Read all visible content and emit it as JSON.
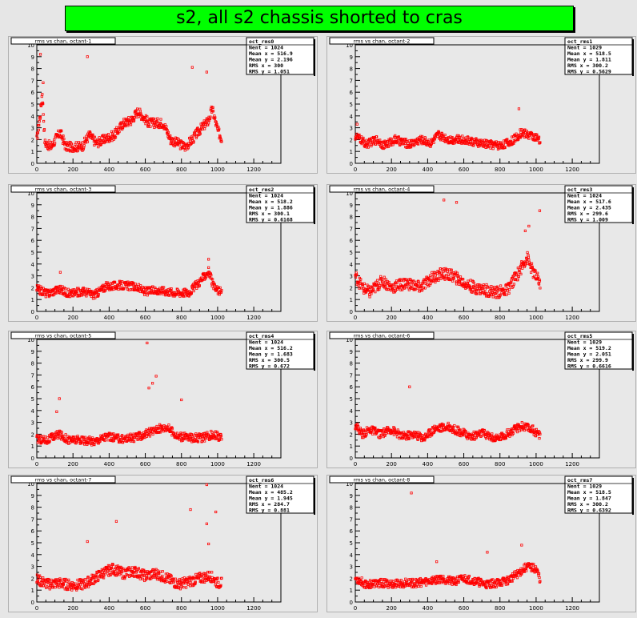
{
  "title": "s2, all s2 chassis shorted to cras",
  "colors": {
    "background": "#e6e6e6",
    "title_bg": "#00ff00",
    "marker": "#ff0000",
    "frame": "#000000"
  },
  "chart_data": [
    {
      "type": "scatter",
      "title": "rms vs chan, octant-1",
      "stats": {
        "name": "oct_rms0",
        "entries": "Nent = 1024",
        "mean_x": "Mean x =  516.9",
        "mean_y": "Mean y =  2.196",
        "rms_x": "RMS x =    300",
        "rms_y": "RMS y =  1.051"
      },
      "xlim": [
        0,
        1350
      ],
      "ylim": [
        0,
        10
      ],
      "xticks": [
        0,
        200,
        400,
        600,
        800,
        1000,
        1200
      ],
      "yticks": [
        0,
        1,
        2,
        3,
        4,
        5,
        6,
        7,
        8,
        9,
        10
      ],
      "profile": [
        [
          0,
          2.0
        ],
        [
          20,
          4.2
        ],
        [
          30,
          6.0
        ],
        [
          45,
          1.7
        ],
        [
          80,
          1.4
        ],
        [
          110,
          2.2
        ],
        [
          130,
          2.6
        ],
        [
          160,
          1.4
        ],
        [
          250,
          1.4
        ],
        [
          290,
          2.4
        ],
        [
          330,
          1.7
        ],
        [
          370,
          2.0
        ],
        [
          430,
          2.4
        ],
        [
          480,
          3.4
        ],
        [
          520,
          3.6
        ],
        [
          560,
          4.4
        ],
        [
          620,
          3.4
        ],
        [
          700,
          3.4
        ],
        [
          740,
          2.0
        ],
        [
          820,
          1.4
        ],
        [
          860,
          2.0
        ],
        [
          900,
          2.8
        ],
        [
          950,
          3.6
        ],
        [
          970,
          4.6
        ],
        [
          1000,
          2.8
        ],
        [
          1030,
          1.8
        ]
      ],
      "spread": 0.4,
      "outliers": [
        [
          20,
          9.2
        ],
        [
          280,
          9.0
        ],
        [
          860,
          8.1
        ],
        [
          940,
          7.7
        ],
        [
          35,
          6.8
        ],
        [
          30,
          5.0
        ]
      ]
    },
    {
      "type": "scatter",
      "title": "rms vs chan, octant-2",
      "stats": {
        "name": "oct_rms1",
        "entries": "Nent = 1029",
        "mean_x": "Mean x =  518.5",
        "mean_y": "Mean y =  1.811",
        "rms_x": "RMS x =  300.2",
        "rms_y": "RMS y = 0.5629"
      },
      "xlim": [
        0,
        1350
      ],
      "ylim": [
        0,
        10
      ],
      "xticks": [
        0,
        200,
        400,
        600,
        800,
        1000,
        1200
      ],
      "yticks": [
        0,
        1,
        2,
        3,
        4,
        5,
        6,
        7,
        8,
        9,
        10
      ],
      "profile": [
        [
          0,
          2.3
        ],
        [
          30,
          2.0
        ],
        [
          60,
          1.6
        ],
        [
          120,
          2.0
        ],
        [
          160,
          1.5
        ],
        [
          220,
          2.0
        ],
        [
          300,
          1.6
        ],
        [
          360,
          2.0
        ],
        [
          420,
          1.7
        ],
        [
          460,
          2.4
        ],
        [
          520,
          2.0
        ],
        [
          600,
          2.0
        ],
        [
          680,
          1.7
        ],
        [
          740,
          1.6
        ],
        [
          800,
          1.5
        ],
        [
          860,
          1.8
        ],
        [
          920,
          2.6
        ],
        [
          960,
          2.4
        ],
        [
          1000,
          2.2
        ],
        [
          1030,
          1.6
        ]
      ],
      "spread": 0.35,
      "outliers": [
        [
          905,
          4.6
        ],
        [
          10,
          3.3
        ]
      ]
    },
    {
      "type": "scatter",
      "title": "rms vs chan, octant-3",
      "stats": {
        "name": "oct_rms2",
        "entries": "Nent = 1024",
        "mean_x": "Mean x =  518.2",
        "mean_y": "Mean y =  1.886",
        "rms_x": "RMS x =  300.1",
        "rms_y": "RMS y = 0.6168"
      },
      "xlim": [
        0,
        1350
      ],
      "ylim": [
        0,
        10
      ],
      "xticks": [
        0,
        200,
        400,
        600,
        800,
        1000,
        1200
      ],
      "yticks": [
        0,
        1,
        2,
        3,
        4,
        5,
        6,
        7,
        8,
        9,
        10
      ],
      "profile": [
        [
          0,
          1.9
        ],
        [
          60,
          1.5
        ],
        [
          120,
          1.9
        ],
        [
          180,
          1.5
        ],
        [
          260,
          1.7
        ],
        [
          320,
          1.4
        ],
        [
          380,
          2.1
        ],
        [
          460,
          2.2
        ],
        [
          540,
          2.1
        ],
        [
          600,
          1.7
        ],
        [
          680,
          1.8
        ],
        [
          760,
          1.6
        ],
        [
          840,
          1.6
        ],
        [
          900,
          2.5
        ],
        [
          950,
          3.4
        ],
        [
          980,
          2.0
        ],
        [
          1030,
          1.5
        ]
      ],
      "spread": 0.35,
      "outliers": [
        [
          950,
          4.4
        ],
        [
          130,
          3.3
        ]
      ]
    },
    {
      "type": "scatter",
      "title": "rms vs chan, octant-4",
      "stats": {
        "name": "oct_rms3",
        "entries": "Nent = 1024",
        "mean_x": "Mean x =  517.6",
        "mean_y": "Mean y =  2.435",
        "rms_x": "RMS x =  299.6",
        "rms_y": "RMS y =  1.009"
      },
      "xlim": [
        0,
        1350
      ],
      "ylim": [
        0,
        10
      ],
      "xticks": [
        0,
        200,
        400,
        600,
        800,
        1000,
        1200
      ],
      "yticks": [
        0,
        1,
        2,
        3,
        4,
        5,
        6,
        7,
        8,
        9,
        10
      ],
      "profile": [
        [
          0,
          3.0
        ],
        [
          40,
          2.0
        ],
        [
          80,
          1.6
        ],
        [
          150,
          2.6
        ],
        [
          200,
          2.0
        ],
        [
          280,
          2.4
        ],
        [
          360,
          2.0
        ],
        [
          420,
          2.8
        ],
        [
          480,
          3.2
        ],
        [
          540,
          3.0
        ],
        [
          600,
          2.4
        ],
        [
          660,
          2.0
        ],
        [
          720,
          1.8
        ],
        [
          780,
          1.6
        ],
        [
          840,
          1.8
        ],
        [
          900,
          3.2
        ],
        [
          950,
          4.6
        ],
        [
          980,
          3.4
        ],
        [
          1030,
          2.2
        ]
      ],
      "spread": 0.5,
      "outliers": [
        [
          490,
          9.4
        ],
        [
          560,
          9.2
        ],
        [
          1020,
          8.5
        ],
        [
          960,
          7.2
        ],
        [
          940,
          6.8
        ]
      ]
    },
    {
      "type": "scatter",
      "title": "rms vs chan, octant-5",
      "stats": {
        "name": "oct_rms4",
        "entries": "Nent = 1024",
        "mean_x": "Mean x =  516.2",
        "mean_y": "Mean y =  1.683",
        "rms_x": "RMS x =  300.5",
        "rms_y": "RMS y =  0.672"
      },
      "xlim": [
        0,
        1350
      ],
      "ylim": [
        0,
        10
      ],
      "xticks": [
        0,
        200,
        400,
        600,
        800,
        1000,
        1200
      ],
      "yticks": [
        0,
        1,
        2,
        3,
        4,
        5,
        6,
        7,
        8,
        9,
        10
      ],
      "profile": [
        [
          0,
          1.6
        ],
        [
          60,
          1.5
        ],
        [
          120,
          2.0
        ],
        [
          180,
          1.5
        ],
        [
          260,
          1.5
        ],
        [
          320,
          1.4
        ],
        [
          380,
          1.8
        ],
        [
          460,
          1.6
        ],
        [
          540,
          1.7
        ],
        [
          600,
          2.0
        ],
        [
          660,
          2.4
        ],
        [
          720,
          2.6
        ],
        [
          780,
          1.8
        ],
        [
          860,
          1.7
        ],
        [
          920,
          1.7
        ],
        [
          980,
          2.0
        ],
        [
          1030,
          1.6
        ]
      ],
      "spread": 0.35,
      "outliers": [
        [
          610,
          9.7
        ],
        [
          660,
          6.9
        ],
        [
          640,
          6.3
        ],
        [
          620,
          5.9
        ],
        [
          125,
          5.0
        ],
        [
          800,
          4.9
        ],
        [
          110,
          3.9
        ]
      ]
    },
    {
      "type": "scatter",
      "title": "rms vs chan, octant-6",
      "stats": {
        "name": "oct_rms5",
        "entries": "Nent = 1029",
        "mean_x": "Mean x =  519.2",
        "mean_y": "Mean y =  2.051",
        "rms_x": "RMS x =  299.9",
        "rms_y": "RMS y = 0.6616"
      },
      "xlim": [
        0,
        1350
      ],
      "ylim": [
        0,
        10
      ],
      "xticks": [
        0,
        200,
        400,
        600,
        800,
        1000,
        1200
      ],
      "yticks": [
        0,
        1,
        2,
        3,
        4,
        5,
        6,
        7,
        8,
        9,
        10
      ],
      "profile": [
        [
          0,
          2.8
        ],
        [
          40,
          2.0
        ],
        [
          80,
          2.4
        ],
        [
          140,
          2.0
        ],
        [
          200,
          2.4
        ],
        [
          260,
          1.8
        ],
        [
          320,
          2.0
        ],
        [
          380,
          1.7
        ],
        [
          440,
          2.5
        ],
        [
          520,
          2.6
        ],
        [
          580,
          2.2
        ],
        [
          640,
          1.8
        ],
        [
          700,
          2.1
        ],
        [
          780,
          1.6
        ],
        [
          860,
          2.2
        ],
        [
          920,
          2.7
        ],
        [
          980,
          2.4
        ],
        [
          1030,
          1.8
        ]
      ],
      "spread": 0.35,
      "outliers": [
        [
          300,
          6.0
        ]
      ]
    },
    {
      "type": "scatter",
      "title": "rms vs chan, octant-7",
      "stats": {
        "name": "oct_rms6",
        "entries": "Nent = 1024",
        "mean_x": "Mean x =  485.2",
        "mean_y": "Mean y =  1.945",
        "rms_x": "RMS x =  284.7",
        "rms_y": "RMS y =  0.881"
      },
      "xlim": [
        0,
        1350
      ],
      "ylim": [
        0,
        10
      ],
      "xticks": [
        0,
        200,
        400,
        600,
        800,
        1000,
        1200
      ],
      "yticks": [
        0,
        1,
        2,
        3,
        4,
        5,
        6,
        7,
        8,
        9,
        10
      ],
      "profile": [
        [
          0,
          1.9
        ],
        [
          60,
          1.5
        ],
        [
          120,
          1.6
        ],
        [
          200,
          1.4
        ],
        [
          260,
          1.5
        ],
        [
          320,
          2.0
        ],
        [
          360,
          2.4
        ],
        [
          420,
          2.8
        ],
        [
          480,
          2.4
        ],
        [
          540,
          2.6
        ],
        [
          600,
          2.2
        ],
        [
          660,
          2.4
        ],
        [
          720,
          2.0
        ],
        [
          780,
          1.5
        ],
        [
          840,
          1.7
        ],
        [
          900,
          2.0
        ],
        [
          960,
          2.2
        ],
        [
          1000,
          1.6
        ]
      ],
      "spread": 0.45,
      "outliers": [
        [
          940,
          9.9
        ],
        [
          990,
          7.6
        ],
        [
          850,
          7.8
        ],
        [
          940,
          6.6
        ],
        [
          440,
          6.8
        ],
        [
          280,
          5.1
        ],
        [
          950,
          4.9
        ]
      ]
    },
    {
      "type": "scatter",
      "title": "rms vs chan, octant-8",
      "stats": {
        "name": "oct_rms7",
        "entries": "Nent = 1029",
        "mean_x": "Mean x =  518.5",
        "mean_y": "Mean y =  1.847",
        "rms_x": "RMS x =  300.2",
        "rms_y": "RMS y = 0.6392"
      },
      "xlim": [
        0,
        1350
      ],
      "ylim": [
        0,
        10
      ],
      "xticks": [
        0,
        200,
        400,
        600,
        800,
        1000,
        1200
      ],
      "yticks": [
        0,
        1,
        2,
        3,
        4,
        5,
        6,
        7,
        8,
        9,
        10
      ],
      "profile": [
        [
          0,
          2.0
        ],
        [
          60,
          1.5
        ],
        [
          140,
          1.6
        ],
        [
          200,
          1.5
        ],
        [
          280,
          1.6
        ],
        [
          340,
          1.6
        ],
        [
          420,
          1.8
        ],
        [
          480,
          2.0
        ],
        [
          540,
          1.7
        ],
        [
          600,
          2.0
        ],
        [
          660,
          1.8
        ],
        [
          720,
          1.5
        ],
        [
          780,
          1.6
        ],
        [
          840,
          1.8
        ],
        [
          900,
          2.4
        ],
        [
          950,
          3.0
        ],
        [
          1000,
          2.8
        ],
        [
          1030,
          1.6
        ]
      ],
      "spread": 0.35,
      "outliers": [
        [
          310,
          9.2
        ],
        [
          730,
          4.2
        ],
        [
          920,
          4.8
        ],
        [
          450,
          3.4
        ]
      ]
    }
  ]
}
